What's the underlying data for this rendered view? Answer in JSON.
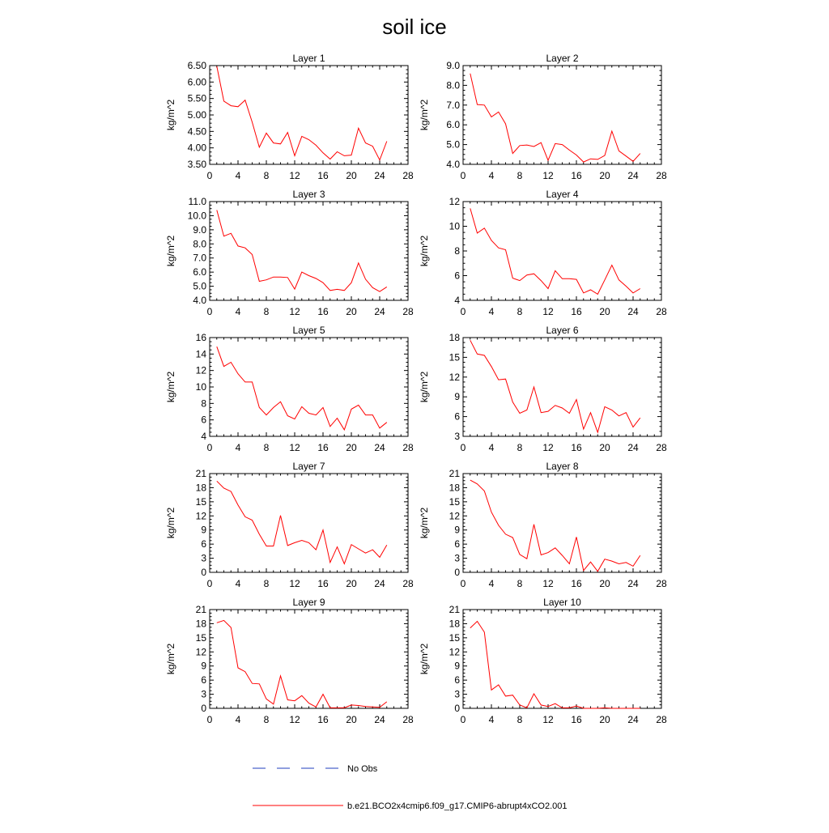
{
  "figure": {
    "title": "soil ice",
    "colors": {
      "model": "#ff0000",
      "obs": "#1f3fbf",
      "axis": "#000000"
    }
  },
  "legend": [
    {
      "label": "No Obs",
      "style": "dashed",
      "color": "#1f3fbf"
    },
    {
      "label": "b.e21.BCO2x4cmip6.f09_g17.CMIP6-abrupt4xCO2.001",
      "style": "solid",
      "color": "#ff0000"
    }
  ],
  "chart_data": [
    {
      "type": "line",
      "title": "Layer 1",
      "ylabel": "kg/m^2",
      "xlim": [
        0,
        28
      ],
      "xticks": [
        "0",
        "4",
        "8",
        "12",
        "16",
        "20",
        "24",
        "28"
      ],
      "ylim": [
        3.5,
        6.5
      ],
      "yticks": [
        "3.50",
        "4.00",
        "4.50",
        "5.00",
        "5.50",
        "6.00",
        "6.50"
      ],
      "series": [
        {
          "name": "b.e21.BCO2x4cmip6.f09_g17.CMIP6-abrupt4xCO2.001",
          "x": [
            1,
            2,
            3,
            4,
            5,
            6,
            7,
            8,
            9,
            10,
            11,
            12,
            13,
            14,
            15,
            16,
            17,
            18,
            19,
            20,
            21,
            22,
            23,
            24,
            25
          ],
          "values": [
            6.48,
            5.42,
            5.28,
            5.25,
            5.45,
            4.78,
            4.02,
            4.45,
            4.15,
            4.12,
            4.47,
            3.76,
            4.35,
            4.25,
            4.08,
            3.85,
            3.66,
            3.88,
            3.76,
            3.78,
            4.6,
            4.15,
            4.05,
            3.63,
            4.2
          ]
        }
      ]
    },
    {
      "type": "line",
      "title": "Layer 2",
      "ylabel": "kg/m^2",
      "xlim": [
        0,
        28
      ],
      "xticks": [
        "0",
        "4",
        "8",
        "12",
        "16",
        "20",
        "24",
        "28"
      ],
      "ylim": [
        4.0,
        9.0
      ],
      "yticks": [
        "4.0",
        "5.0",
        "6.0",
        "7.0",
        "8.0",
        "9.0"
      ],
      "series": [
        {
          "name": "b.e21.BCO2x4cmip6.f09_g17.CMIP6-abrupt4xCO2.001",
          "x": [
            1,
            2,
            3,
            4,
            5,
            6,
            7,
            8,
            9,
            10,
            11,
            12,
            13,
            14,
            15,
            16,
            17,
            18,
            19,
            20,
            21,
            22,
            23,
            24,
            25
          ],
          "values": [
            8.6,
            7.03,
            7.0,
            6.4,
            6.65,
            6.05,
            4.55,
            4.95,
            4.98,
            4.9,
            5.1,
            4.2,
            5.05,
            5.0,
            4.72,
            4.47,
            4.12,
            4.28,
            4.25,
            4.45,
            5.68,
            4.68,
            4.42,
            4.15,
            4.55
          ]
        }
      ]
    },
    {
      "type": "line",
      "title": "Layer 3",
      "ylabel": "kg/m^2",
      "xlim": [
        0,
        28
      ],
      "xticks": [
        "0",
        "4",
        "8",
        "12",
        "16",
        "20",
        "24",
        "28"
      ],
      "ylim": [
        4.0,
        11.0
      ],
      "yticks": [
        "4.0",
        "5.0",
        "6.0",
        "7.0",
        "8.0",
        "9.0",
        "10.0",
        "11.0"
      ],
      "series": [
        {
          "name": "b.e21.BCO2x4cmip6.f09_g17.CMIP6-abrupt4xCO2.001",
          "x": [
            1,
            2,
            3,
            4,
            5,
            6,
            7,
            8,
            9,
            10,
            11,
            12,
            13,
            14,
            15,
            16,
            17,
            18,
            19,
            20,
            21,
            22,
            23,
            24,
            25
          ],
          "values": [
            10.4,
            8.55,
            8.75,
            7.85,
            7.72,
            7.25,
            5.35,
            5.45,
            5.65,
            5.65,
            5.62,
            4.8,
            6.0,
            5.75,
            5.55,
            5.25,
            4.7,
            4.78,
            4.7,
            5.25,
            6.65,
            5.5,
            4.9,
            4.62,
            4.95
          ]
        }
      ]
    },
    {
      "type": "line",
      "title": "Layer 4",
      "ylabel": "kg/m^2",
      "xlim": [
        0,
        28
      ],
      "xticks": [
        "0",
        "4",
        "8",
        "12",
        "16",
        "20",
        "24",
        "28"
      ],
      "ylim": [
        4,
        12
      ],
      "yticks": [
        "4",
        "6",
        "8",
        "10",
        "12"
      ],
      "series": [
        {
          "name": "b.e21.BCO2x4cmip6.f09_g17.CMIP6-abrupt4xCO2.001",
          "x": [
            1,
            2,
            3,
            4,
            5,
            6,
            7,
            8,
            9,
            10,
            11,
            12,
            13,
            14,
            15,
            16,
            17,
            18,
            19,
            20,
            21,
            22,
            23,
            24,
            25
          ],
          "values": [
            11.45,
            9.45,
            9.85,
            8.85,
            8.25,
            8.1,
            5.8,
            5.6,
            6.05,
            6.15,
            5.6,
            4.95,
            6.4,
            5.75,
            5.75,
            5.7,
            4.6,
            4.85,
            4.5,
            5.65,
            6.85,
            5.65,
            5.15,
            4.6,
            4.95
          ]
        }
      ]
    },
    {
      "type": "line",
      "title": "Layer 5",
      "ylabel": "kg/m^2",
      "xlim": [
        0,
        28
      ],
      "xticks": [
        "0",
        "4",
        "8",
        "12",
        "16",
        "20",
        "24",
        "28"
      ],
      "ylim": [
        4,
        16
      ],
      "yticks": [
        "4",
        "6",
        "8",
        "10",
        "12",
        "14",
        "16"
      ],
      "series": [
        {
          "name": "b.e21.BCO2x4cmip6.f09_g17.CMIP6-abrupt4xCO2.001",
          "x": [
            1,
            2,
            3,
            4,
            5,
            6,
            7,
            8,
            9,
            10,
            11,
            12,
            13,
            14,
            15,
            16,
            17,
            18,
            19,
            20,
            21,
            22,
            23,
            24,
            25
          ],
          "values": [
            14.9,
            12.5,
            13.0,
            11.6,
            10.6,
            10.6,
            7.5,
            6.6,
            7.5,
            8.2,
            6.5,
            6.1,
            7.6,
            6.8,
            6.6,
            7.5,
            5.2,
            6.2,
            4.8,
            7.3,
            7.8,
            6.6,
            6.6,
            5.0,
            5.7
          ]
        }
      ]
    },
    {
      "type": "line",
      "title": "Layer 6",
      "ylabel": "kg/m^2",
      "xlim": [
        0,
        28
      ],
      "xticks": [
        "0",
        "4",
        "8",
        "12",
        "16",
        "20",
        "24",
        "28"
      ],
      "ylim": [
        3,
        18
      ],
      "yticks": [
        "3",
        "6",
        "9",
        "12",
        "15",
        "18"
      ],
      "series": [
        {
          "name": "b.e21.BCO2x4cmip6.f09_g17.CMIP6-abrupt4xCO2.001",
          "x": [
            1,
            2,
            3,
            4,
            5,
            6,
            7,
            8,
            9,
            10,
            11,
            12,
            13,
            14,
            15,
            16,
            17,
            18,
            19,
            20,
            21,
            22,
            23,
            24,
            25
          ],
          "values": [
            17.6,
            15.5,
            15.3,
            13.6,
            11.6,
            11.7,
            8.2,
            6.5,
            7.0,
            10.5,
            6.6,
            6.8,
            7.7,
            7.3,
            6.5,
            8.6,
            4.1,
            6.6,
            3.6,
            7.5,
            7.0,
            6.1,
            6.6,
            4.4,
            5.8
          ]
        }
      ]
    },
    {
      "type": "line",
      "title": "Layer 7",
      "ylabel": "kg/m^2",
      "xlim": [
        0,
        28
      ],
      "xticks": [
        "0",
        "4",
        "8",
        "12",
        "16",
        "20",
        "24",
        "28"
      ],
      "ylim": [
        0,
        21
      ],
      "yticks": [
        "0",
        "3",
        "6",
        "9",
        "12",
        "15",
        "18",
        "21"
      ],
      "series": [
        {
          "name": "b.e21.BCO2x4cmip6.f09_g17.CMIP6-abrupt4xCO2.001",
          "x": [
            1,
            2,
            3,
            4,
            5,
            6,
            7,
            8,
            9,
            10,
            11,
            12,
            13,
            14,
            15,
            16,
            17,
            18,
            19,
            20,
            21,
            22,
            23,
            24,
            25
          ],
          "values": [
            19.4,
            17.9,
            17.2,
            14.3,
            11.8,
            11.1,
            8.1,
            5.6,
            5.6,
            12.1,
            5.7,
            6.3,
            6.8,
            6.3,
            4.8,
            9.0,
            2.1,
            5.4,
            1.8,
            5.9,
            5.0,
            4.1,
            4.8,
            3.2,
            5.8
          ]
        }
      ]
    },
    {
      "type": "line",
      "title": "Layer 8",
      "ylabel": "kg/m^2",
      "xlim": [
        0,
        28
      ],
      "xticks": [
        "0",
        "4",
        "8",
        "12",
        "16",
        "20",
        "24",
        "28"
      ],
      "ylim": [
        0,
        21
      ],
      "yticks": [
        "0",
        "3",
        "6",
        "9",
        "12",
        "15",
        "18",
        "21"
      ],
      "series": [
        {
          "name": "b.e21.BCO2x4cmip6.f09_g17.CMIP6-abrupt4xCO2.001",
          "x": [
            1,
            2,
            3,
            4,
            5,
            6,
            7,
            8,
            9,
            10,
            11,
            12,
            13,
            14,
            15,
            16,
            17,
            18,
            19,
            20,
            21,
            22,
            23,
            24,
            25
          ],
          "values": [
            19.6,
            18.8,
            17.3,
            12.8,
            10.0,
            8.1,
            7.4,
            3.8,
            2.9,
            10.2,
            3.7,
            4.2,
            5.2,
            3.6,
            1.8,
            7.5,
            0.4,
            2.2,
            0.2,
            2.8,
            2.4,
            1.8,
            2.1,
            1.3,
            3.6
          ]
        }
      ]
    },
    {
      "type": "line",
      "title": "Layer 9",
      "ylabel": "kg/m^2",
      "xlim": [
        0,
        28
      ],
      "xticks": [
        "0",
        "4",
        "8",
        "12",
        "16",
        "20",
        "24",
        "28"
      ],
      "ylim": [
        0,
        21
      ],
      "yticks": [
        "0",
        "3",
        "6",
        "9",
        "12",
        "15",
        "18",
        "21"
      ],
      "series": [
        {
          "name": "b.e21.BCO2x4cmip6.f09_g17.CMIP6-abrupt4xCO2.001",
          "x": [
            1,
            2,
            3,
            4,
            5,
            6,
            7,
            8,
            9,
            10,
            11,
            12,
            13,
            14,
            15,
            16,
            17,
            18,
            19,
            20,
            21,
            22,
            23,
            24,
            25
          ],
          "values": [
            18.2,
            18.7,
            17.2,
            8.6,
            7.8,
            5.3,
            5.2,
            2.0,
            0.9,
            6.9,
            1.8,
            1.6,
            2.7,
            1.1,
            0.3,
            3.0,
            0.1,
            0.1,
            0.1,
            0.7,
            0.6,
            0.4,
            0.3,
            0.2,
            1.4
          ]
        }
      ]
    },
    {
      "type": "line",
      "title": "Layer 10",
      "ylabel": "kg/m^2",
      "xlim": [
        0,
        28
      ],
      "xticks": [
        "0",
        "4",
        "8",
        "12",
        "16",
        "20",
        "24",
        "28"
      ],
      "ylim": [
        0,
        21
      ],
      "yticks": [
        "0",
        "3",
        "6",
        "9",
        "12",
        "15",
        "18",
        "21"
      ],
      "series": [
        {
          "name": "b.e21.BCO2x4cmip6.f09_g17.CMIP6-abrupt4xCO2.001",
          "x": [
            1,
            2,
            3,
            4,
            5,
            6,
            7,
            8,
            9,
            10,
            11,
            12,
            13,
            14,
            15,
            16,
            17,
            18,
            19,
            20,
            21,
            22,
            23,
            24,
            25
          ],
          "values": [
            17.1,
            18.5,
            16.2,
            3.9,
            5.0,
            2.6,
            2.8,
            0.7,
            0.1,
            3.1,
            0.7,
            0.4,
            1.0,
            0.1,
            0.1,
            0.5,
            0.0,
            0.0,
            0.0,
            0.1,
            0.0,
            0.0,
            0.0,
            0.0,
            0.0
          ]
        }
      ]
    }
  ]
}
